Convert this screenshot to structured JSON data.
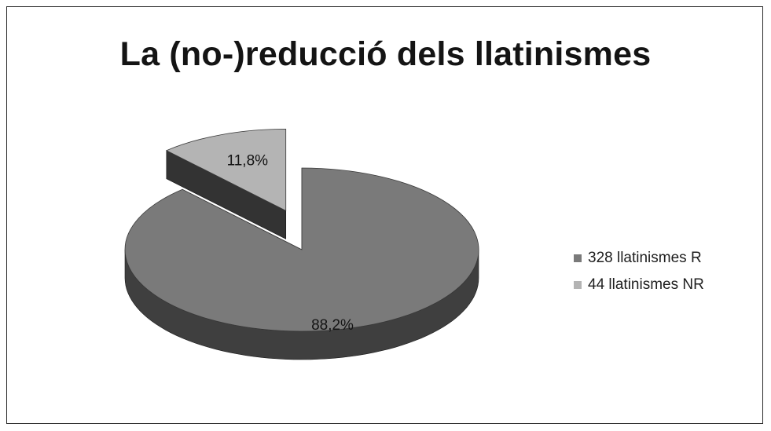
{
  "chart_data": {
    "type": "pie",
    "title": "La (no-)reducció dels llatinismes",
    "slices": [
      {
        "legend": "328 llatinismes R",
        "label": "88,2%",
        "value": 88.2,
        "color": "#7a7a7a",
        "side_color": "#3f3f3f"
      },
      {
        "legend": "44 llatinismes NR",
        "label": "11,8%",
        "value": 11.8,
        "color": "#b4b4b4",
        "side_color": "#2e2e2e"
      }
    ],
    "legend_position": "right",
    "exploded": true,
    "style": "3d"
  }
}
